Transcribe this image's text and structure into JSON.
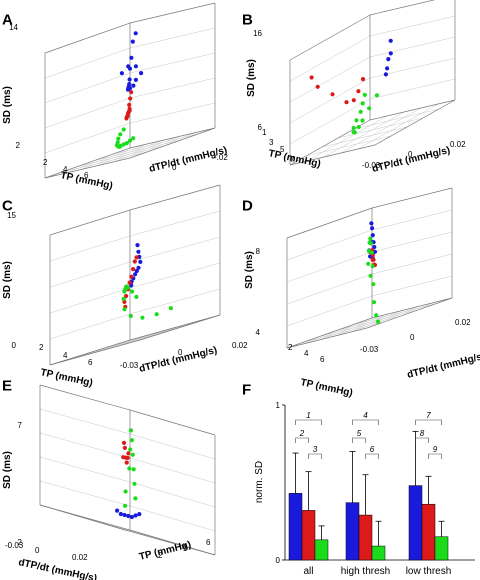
{
  "colors": {
    "blue": "#1a1adc",
    "red": "#dc1a1a",
    "green": "#1adc1a"
  },
  "chart_data": [
    {
      "panel": "A",
      "type": "scatter",
      "xlabel": "TP (mmHg)",
      "ylabel": "SD (ms)",
      "zlabel": "dTP/dt (mmHg/s)",
      "x_ticks": [
        "2",
        "4",
        "6"
      ],
      "y_ticks": [
        "2",
        "14"
      ],
      "z_ticks": [
        "0",
        "-.02"
      ],
      "series": [
        {
          "color": "blue",
          "points": [
            [
              3.0,
              13.2,
              -0.004
            ],
            [
              3.2,
              12.5,
              -0.004
            ],
            [
              3.3,
              11.0,
              -0.004
            ],
            [
              3.4,
              10.0,
              -0.004
            ],
            [
              3.6,
              9.0,
              -0.005
            ],
            [
              3.8,
              8.6,
              -0.006
            ],
            [
              4.0,
              8.4,
              -0.007
            ],
            [
              4.2,
              8.3,
              -0.008
            ],
            [
              4.4,
              8.2,
              -0.009
            ],
            [
              4.6,
              8.3,
              -0.011
            ],
            [
              4.7,
              8.5,
              -0.013
            ],
            [
              4.7,
              9.0,
              -0.014
            ],
            [
              4.5,
              9.5,
              -0.015
            ],
            [
              4.7,
              10.3,
              -0.014
            ],
            [
              4.9,
              10.5,
              -0.012
            ],
            [
              5.0,
              10.0,
              -0.01
            ]
          ]
        },
        {
          "color": "red",
          "points": [
            [
              2.4,
              6.0,
              0.002
            ],
            [
              2.8,
              5.8,
              0.0
            ],
            [
              3.2,
              5.7,
              -0.002
            ],
            [
              3.6,
              5.5,
              -0.004
            ],
            [
              4.0,
              5.4,
              -0.006
            ],
            [
              4.3,
              5.6,
              -0.008
            ],
            [
              4.6,
              5.7,
              -0.01
            ],
            [
              4.8,
              6.2,
              -0.012
            ],
            [
              5.0,
              6.8,
              -0.013
            ],
            [
              5.1,
              7.4,
              -0.014
            ],
            [
              5.2,
              8.0,
              -0.015
            ]
          ]
        },
        {
          "color": "green",
          "points": [
            [
              1.8,
              3.0,
              0.004
            ],
            [
              2.2,
              2.9,
              0.003
            ],
            [
              2.6,
              2.8,
              0.002
            ],
            [
              3.0,
              2.8,
              0.001
            ],
            [
              3.4,
              2.8,
              0.0
            ],
            [
              3.8,
              2.8,
              -0.002
            ],
            [
              4.2,
              2.9,
              -0.004
            ],
            [
              4.6,
              3.0,
              -0.006
            ],
            [
              5.0,
              3.2,
              -0.008
            ],
            [
              5.3,
              3.5,
              -0.01
            ],
            [
              5.6,
              3.9,
              -0.012
            ],
            [
              5.8,
              4.3,
              -0.014
            ],
            [
              5.9,
              4.7,
              -0.016
            ]
          ]
        }
      ]
    },
    {
      "panel": "B",
      "type": "scatter",
      "xlabel": "TP (mmHg)",
      "ylabel": "SD (ms)",
      "zlabel": "dTP/dt (mmHg/s)",
      "x_ticks": [
        "1",
        "3",
        "5",
        "7"
      ],
      "y_ticks": [
        "6",
        "16"
      ],
      "z_ticks": [
        "-0.03",
        "0",
        "0.02"
      ],
      "series": [
        {
          "color": "blue",
          "points": [
            [
              2.0,
              13.5,
              0.0
            ],
            [
              2.5,
              12.5,
              -0.004
            ],
            [
              3.2,
              12.3,
              -0.008
            ],
            [
              3.8,
              11.7,
              -0.012
            ],
            [
              4.4,
              11.4,
              -0.016
            ]
          ]
        },
        {
          "color": "red",
          "points": [
            [
              2.8,
              10.8,
              0.01
            ],
            [
              3.4,
              10.0,
              0.008
            ],
            [
              4.0,
              9.5,
              0.006
            ],
            [
              4.8,
              9.8,
              0.004
            ],
            [
              5.6,
              11.2,
              0.006
            ],
            [
              6.2,
              12.5,
              0.01
            ],
            [
              6.4,
              13.6,
              0.012
            ]
          ]
        },
        {
          "color": "green",
          "points": [
            [
              1.5,
              8.4,
              0.012
            ],
            [
              2.6,
              7.8,
              0.008
            ],
            [
              3.6,
              7.2,
              0.004
            ],
            [
              4.4,
              7.0,
              0.0
            ],
            [
              5.2,
              6.9,
              -0.004
            ],
            [
              5.8,
              7.2,
              -0.008
            ],
            [
              6.3,
              7.8,
              -0.012
            ],
            [
              6.6,
              8.6,
              -0.016
            ],
            [
              6.8,
              9.4,
              -0.02
            ],
            [
              6.9,
              10.2,
              -0.022
            ],
            [
              7.0,
              11.0,
              -0.024
            ]
          ]
        }
      ]
    },
    {
      "panel": "C",
      "type": "scatter",
      "xlabel": "TP (mmHg)",
      "ylabel": "SD (ms)",
      "zlabel": "dTP/dt (mmHg/s)",
      "x_ticks": [
        "2",
        "4",
        "6"
      ],
      "y_ticks": [
        "0",
        "15"
      ],
      "z_ticks": [
        "-0.03",
        "0",
        "0.02"
      ],
      "series": [
        {
          "color": "blue",
          "points": [
            [
              2.6,
              10.8,
              0.004
            ],
            [
              2.8,
              10.0,
              0.002
            ],
            [
              3.0,
              9.4,
              0.0
            ],
            [
              3.2,
              8.8,
              -0.002
            ],
            [
              3.6,
              8.2,
              -0.004
            ],
            [
              4.0,
              7.9,
              -0.006
            ],
            [
              4.4,
              7.6,
              -0.008
            ],
            [
              4.8,
              7.2,
              -0.01
            ],
            [
              5.2,
              6.9,
              -0.012
            ],
            [
              5.5,
              6.5,
              -0.014
            ]
          ]
        },
        {
          "color": "red",
          "points": [
            [
              2.4,
              9.4,
              0.006
            ],
            [
              2.8,
              9.0,
              0.004
            ],
            [
              3.2,
              8.2,
              0.002
            ],
            [
              3.6,
              7.4,
              0.0
            ],
            [
              4.0,
              6.8,
              -0.002
            ],
            [
              4.4,
              6.1,
              -0.004
            ],
            [
              4.8,
              5.4,
              -0.006
            ],
            [
              5.2,
              4.8,
              -0.008
            ],
            [
              5.4,
              4.2,
              -0.01
            ]
          ]
        },
        {
          "color": "green",
          "points": [
            [
              1.6,
              4.8,
              0.012
            ],
            [
              2.2,
              5.6,
              0.01
            ],
            [
              2.8,
              6.2,
              0.008
            ],
            [
              3.4,
              6.4,
              0.004
            ],
            [
              4.0,
              6.4,
              0.0
            ],
            [
              4.6,
              6.2,
              -0.004
            ],
            [
              5.2,
              6.0,
              -0.008
            ],
            [
              5.8,
              5.2,
              -0.012
            ],
            [
              6.0,
              4.0,
              -0.014
            ],
            [
              5.8,
              3.0,
              -0.016
            ],
            [
              5.2,
              2.4,
              -0.018
            ],
            [
              4.4,
              2.3,
              -0.02
            ],
            [
              3.6,
              2.5,
              -0.022
            ]
          ]
        }
      ]
    },
    {
      "panel": "D",
      "type": "scatter",
      "xlabel": "TP (mmHg)",
      "ylabel": "SD (ms)",
      "zlabel": "dTP/dt (mmHg/s)",
      "x_ticks": [
        "2",
        "4",
        "6"
      ],
      "y_ticks": [
        "4",
        "8"
      ],
      "z_ticks": [
        "-0.03",
        "0",
        "0.02"
      ],
      "series": [
        {
          "color": "blue",
          "points": [
            [
              2.4,
              8.4,
              0.008
            ],
            [
              2.8,
              8.2,
              0.004
            ],
            [
              3.2,
              7.9,
              0.0
            ],
            [
              3.6,
              7.6,
              -0.004
            ],
            [
              4.0,
              7.4,
              -0.008
            ],
            [
              4.4,
              7.2,
              -0.012
            ],
            [
              4.8,
              7.0,
              -0.014
            ],
            [
              5.2,
              7.1,
              -0.016
            ],
            [
              5.5,
              7.4,
              -0.018
            ],
            [
              5.6,
              7.8,
              -0.02
            ]
          ]
        },
        {
          "color": "red",
          "points": [
            [
              2.8,
              7.2,
              0.004
            ],
            [
              3.2,
              7.0,
              0.0
            ],
            [
              3.6,
              6.8,
              -0.004
            ],
            [
              4.0,
              6.6,
              -0.008
            ],
            [
              4.4,
              6.6,
              -0.012
            ],
            [
              4.8,
              6.9,
              -0.014
            ],
            [
              5.2,
              7.3,
              -0.016
            ]
          ]
        },
        {
          "color": "green",
          "points": [
            [
              2.0,
              6.0,
              0.012
            ],
            [
              2.4,
              6.6,
              0.01
            ],
            [
              2.8,
              7.2,
              0.006
            ],
            [
              3.2,
              7.6,
              0.002
            ],
            [
              3.6,
              7.8,
              -0.002
            ],
            [
              4.0,
              7.6,
              -0.006
            ],
            [
              4.4,
              7.2,
              -0.01
            ],
            [
              4.8,
              6.6,
              -0.014
            ],
            [
              5.2,
              5.8,
              -0.018
            ],
            [
              5.6,
              5.0,
              -0.022
            ],
            [
              5.9,
              4.4,
              -0.026
            ],
            [
              6.0,
              4.1,
              -0.028
            ]
          ]
        }
      ]
    },
    {
      "panel": "E",
      "type": "scatter",
      "xlabel": "dTP/dt (mmHg/s)",
      "ylabel": "SD (ms)",
      "zlabel": "TP (mmHg)",
      "x_ticks": [
        "-0.03",
        "0",
        "0.02"
      ],
      "y_ticks": [
        "2",
        "7"
      ],
      "z_ticks": [
        "2",
        "4",
        "6"
      ],
      "series": [
        {
          "color": "blue",
          "points": [
            [
              -0.008,
              2.8,
              4.2
            ],
            [
              -0.004,
              2.7,
              4.4
            ],
            [
              0.0,
              2.6,
              4.6
            ],
            [
              0.004,
              2.6,
              4.8
            ],
            [
              0.008,
              2.6,
              5.0
            ],
            [
              0.012,
              2.6,
              5.2
            ],
            [
              0.016,
              2.7,
              5.4
            ]
          ]
        },
        {
          "color": "red",
          "points": [
            [
              -0.01,
              5.2,
              3.2
            ],
            [
              -0.006,
              5.0,
              3.6
            ],
            [
              -0.002,
              4.8,
              4.0
            ],
            [
              0.002,
              5.0,
              4.4
            ],
            [
              0.006,
              5.4,
              4.8
            ],
            [
              0.01,
              5.6,
              5.2
            ],
            [
              0.014,
              5.0,
              5.6
            ]
          ]
        },
        {
          "color": "green",
          "points": [
            [
              -0.016,
              3.4,
              3.0
            ],
            [
              -0.012,
              4.0,
              3.4
            ],
            [
              -0.008,
              4.6,
              3.8
            ],
            [
              -0.004,
              5.2,
              4.2
            ],
            [
              0.0,
              5.8,
              4.6
            ],
            [
              0.004,
              6.2,
              5.0
            ],
            [
              0.008,
              5.4,
              5.4
            ],
            [
              0.012,
              4.6,
              5.8
            ],
            [
              0.016,
              3.6,
              6.0
            ],
            [
              0.018,
              3.0,
              6.2
            ]
          ]
        }
      ]
    },
    {
      "panel": "F",
      "type": "bar",
      "ylabel": "norm. SD",
      "y_ticks": [
        "0",
        "1"
      ],
      "ylim": [
        0,
        1
      ],
      "categories": [
        "all",
        "high thresh",
        "low thresh"
      ],
      "series": [
        {
          "color": "blue",
          "values": [
            0.43,
            0.37,
            0.48
          ],
          "errors": [
            0.26,
            0.33,
            0.35
          ]
        },
        {
          "color": "red",
          "values": [
            0.32,
            0.29,
            0.36
          ],
          "errors": [
            0.25,
            0.26,
            0.18
          ]
        },
        {
          "color": "green",
          "values": [
            0.13,
            0.09,
            0.15
          ],
          "errors": [
            0.09,
            0.16,
            0.1
          ]
        }
      ],
      "significance_labels": [
        "1",
        "2",
        "3",
        "4",
        "5",
        "6",
        "7",
        "8",
        "9"
      ]
    }
  ]
}
